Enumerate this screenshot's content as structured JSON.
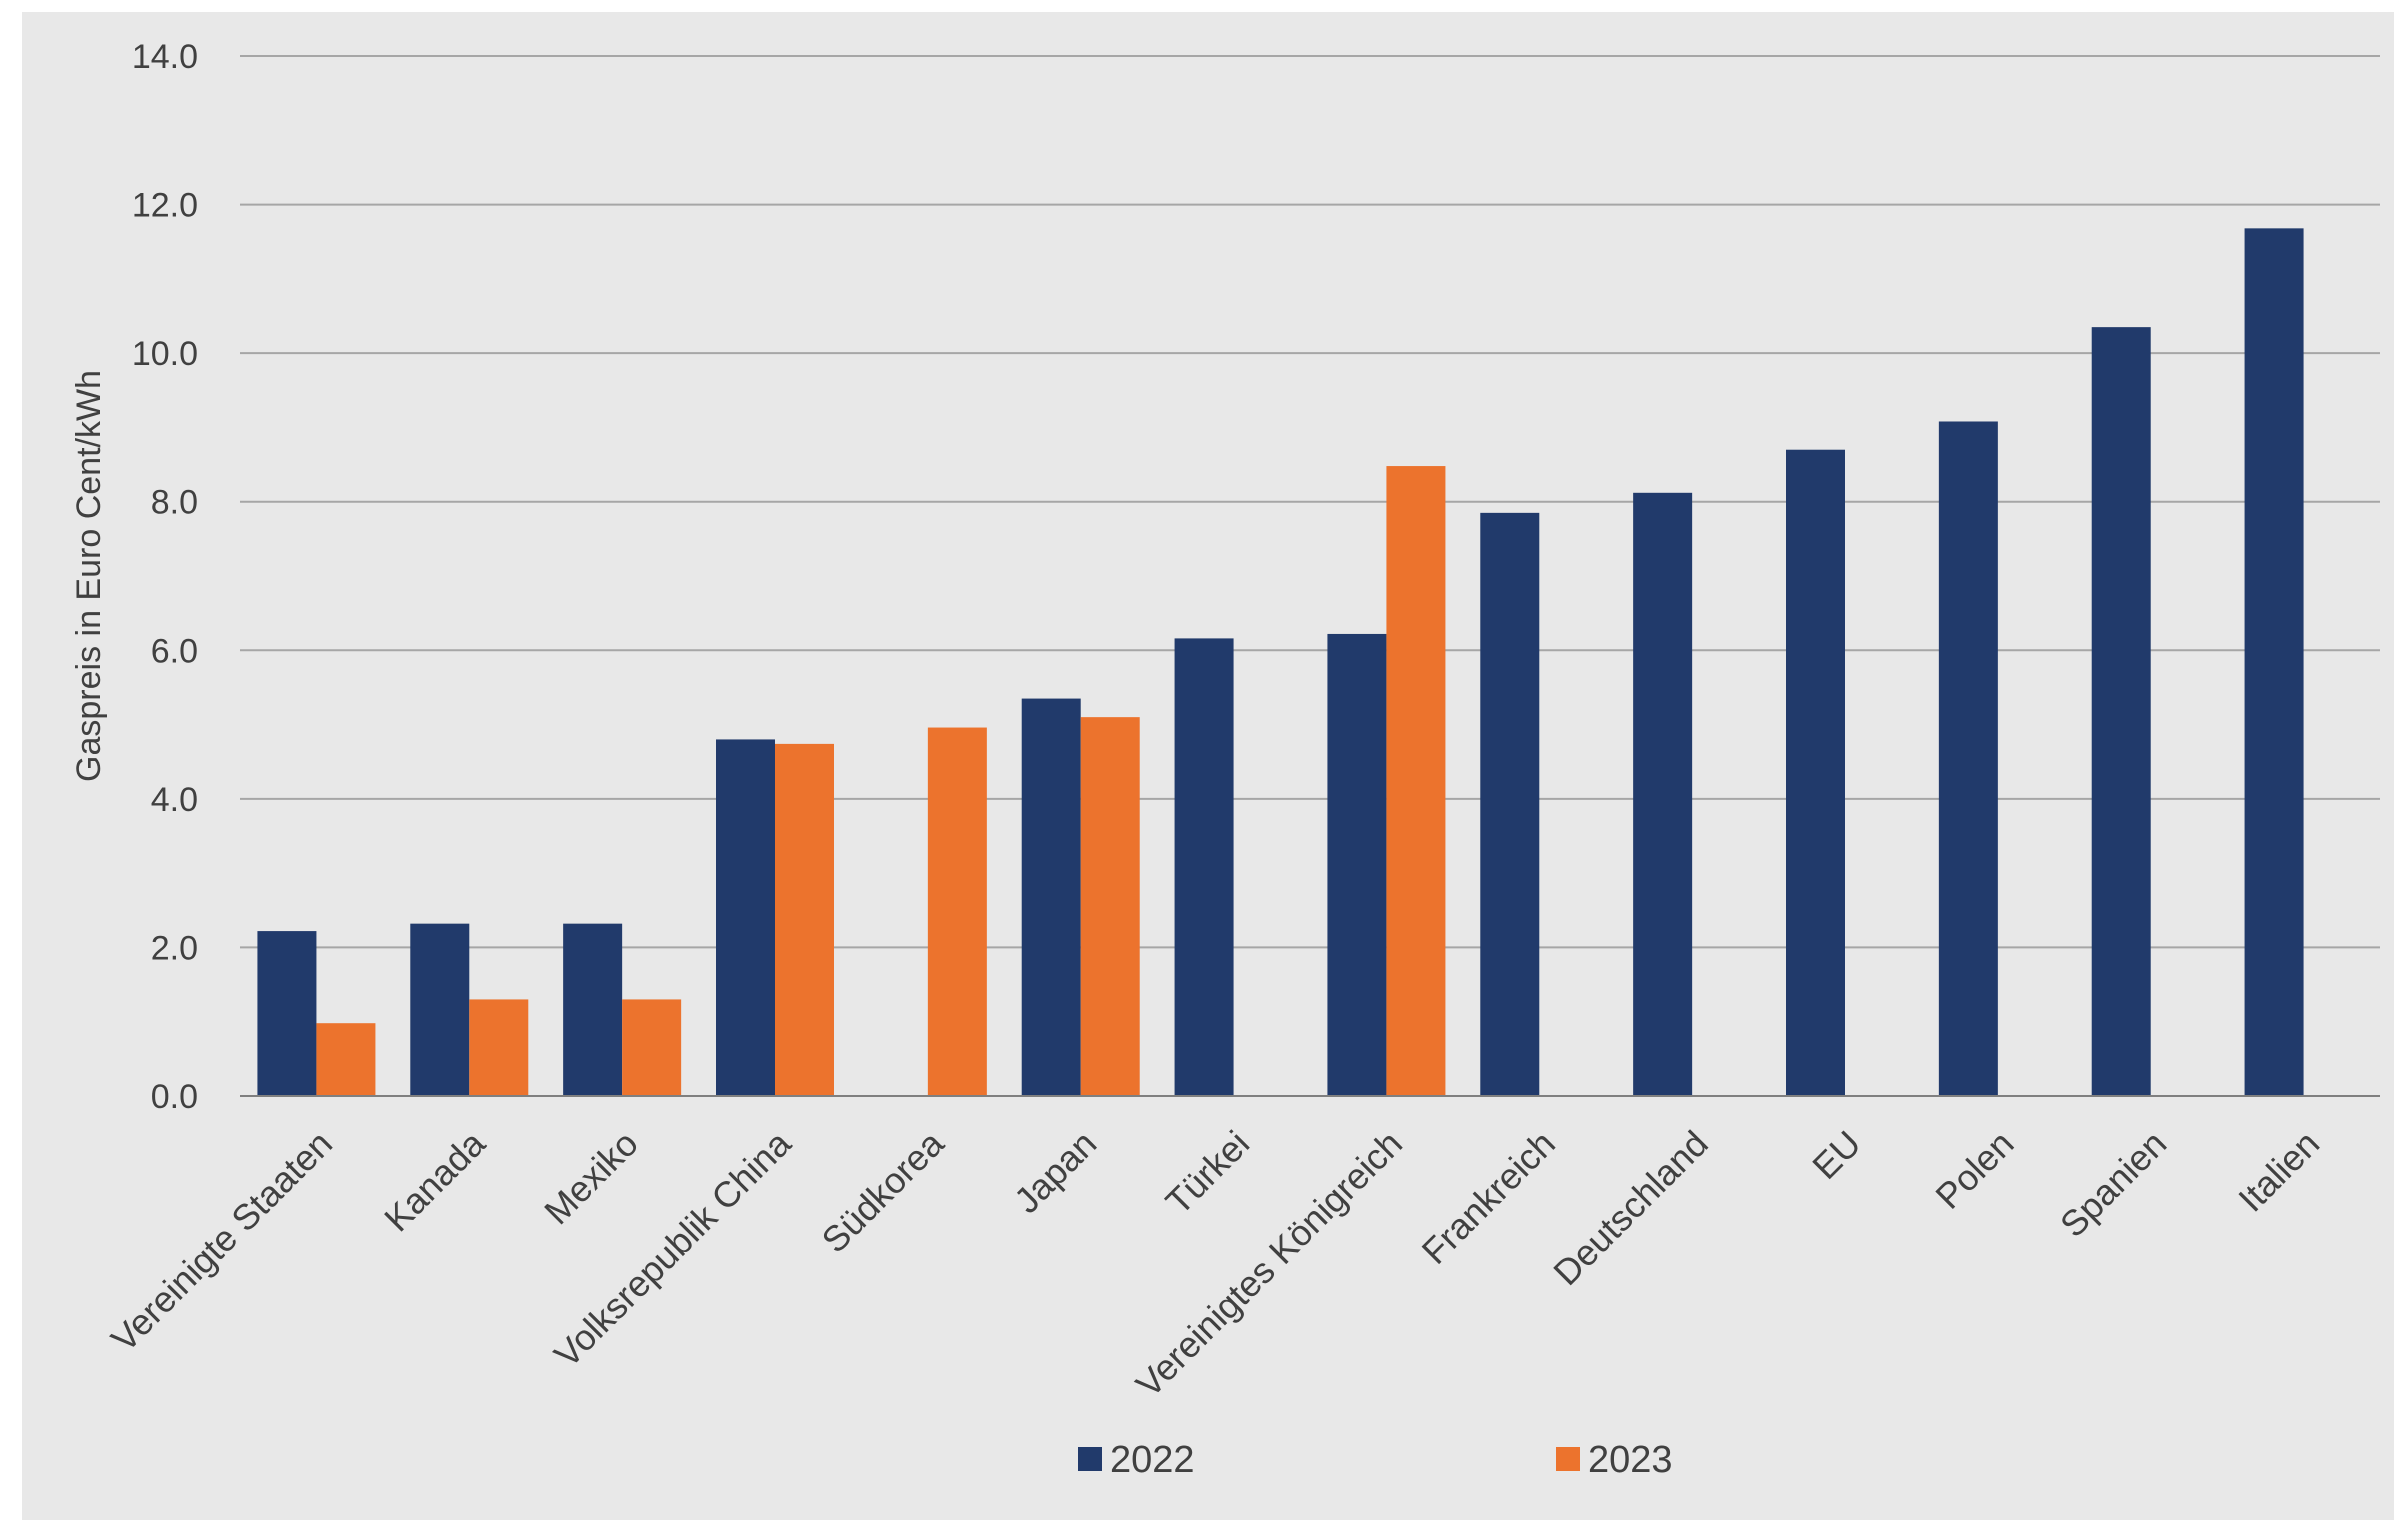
{
  "chart_data": {
    "type": "bar",
    "title": "",
    "xlabel": "",
    "ylabel": "Gaspreis in Euro Cent/kWh",
    "ylim": [
      0,
      14
    ],
    "yticks": [
      "0.0",
      "2.0",
      "4.0",
      "6.0",
      "8.0",
      "10.0",
      "12.0",
      "14.0"
    ],
    "grid": true,
    "legend_position": "bottom",
    "categories": [
      "Vereinigte Staaten",
      "Kanada",
      "Mexiko",
      "Volksrepublik China",
      "Südkorea",
      "Japan",
      "Türkei",
      "Vereinigtes Königreich",
      "Frankreich",
      "Deutschland",
      "EU",
      "Polen",
      "Spanien",
      "Italien"
    ],
    "series": [
      {
        "name": "2022",
        "color": "#213a6b",
        "values": [
          2.22,
          2.32,
          2.32,
          4.8,
          null,
          5.35,
          6.16,
          6.22,
          7.85,
          8.12,
          8.7,
          9.08,
          10.35,
          11.68
        ]
      },
      {
        "name": "2023",
        "color": "#ec732d",
        "values": [
          0.98,
          1.3,
          1.3,
          4.74,
          4.96,
          5.1,
          null,
          8.48,
          null,
          null,
          null,
          null,
          null,
          null
        ]
      }
    ]
  }
}
